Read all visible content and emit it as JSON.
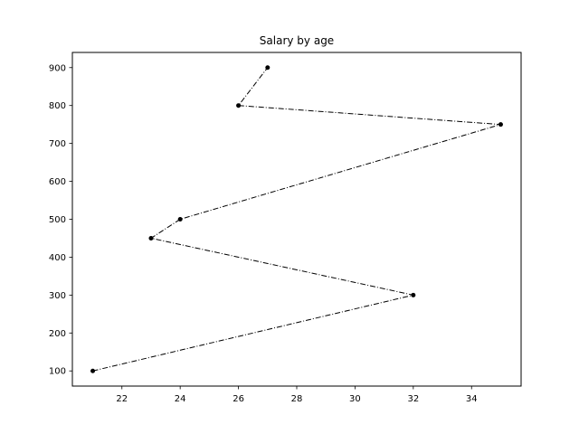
{
  "chart_data": {
    "type": "line",
    "title": "Salary by age",
    "xlabel": "",
    "ylabel": "",
    "xlim": [
      20.3,
      35.7
    ],
    "ylim": [
      60,
      940
    ],
    "xticks": [
      22,
      24,
      26,
      28,
      30,
      32,
      34
    ],
    "yticks": [
      100,
      200,
      300,
      400,
      500,
      600,
      700,
      800,
      900
    ],
    "grid": false,
    "legend": "none",
    "series": [
      {
        "x": [
          21,
          32,
          23,
          24,
          35,
          26,
          27
        ],
        "y": [
          100,
          300,
          450,
          500,
          750,
          800,
          900
        ],
        "color": "#000000",
        "line_style": "dashdot",
        "marker": "circle"
      }
    ]
  }
}
